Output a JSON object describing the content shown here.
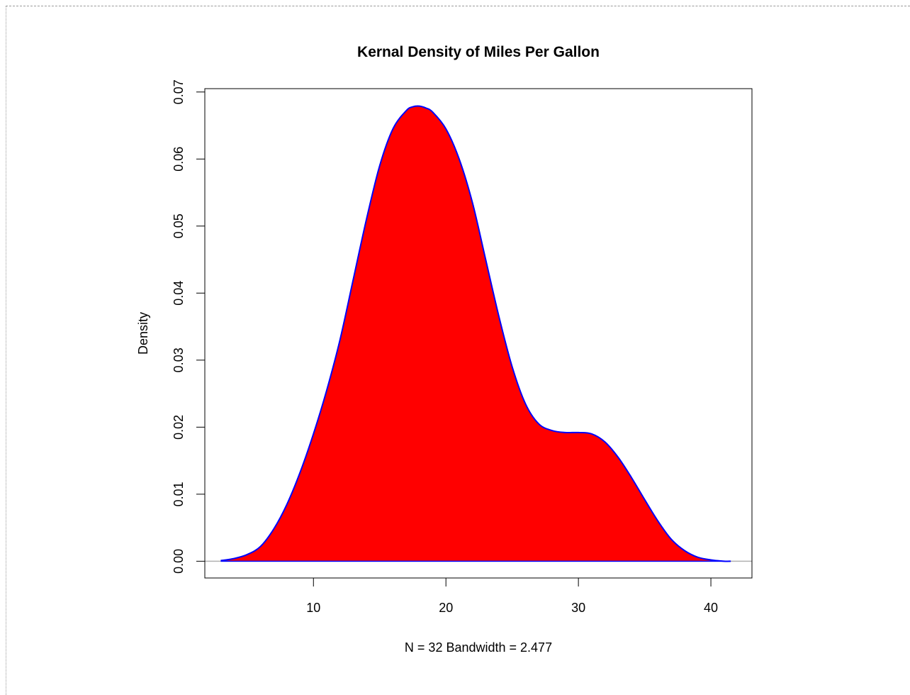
{
  "chart_data": {
    "type": "area",
    "title": "Kernal Density of Miles Per Gallon",
    "xlabel": "N = 32   Bandwidth = 2.477",
    "ylabel": "Density",
    "xlim": [
      1.8,
      43.1
    ],
    "ylim": [
      -0.0025,
      0.0705
    ],
    "xticks": [
      10,
      20,
      30,
      40
    ],
    "yticks": [
      0.0,
      0.01,
      0.02,
      0.03,
      0.04,
      0.05,
      0.06,
      0.07
    ],
    "xtick_labels": [
      "10",
      "20",
      "30",
      "40"
    ],
    "ytick_labels": [
      "0.00",
      "0.01",
      "0.02",
      "0.03",
      "0.04",
      "0.05",
      "0.06",
      "0.07"
    ],
    "fill_color": "#ff0000",
    "line_color": "#0000ff",
    "baseline_color": "#b0b0b0",
    "grid": false,
    "legend": "none",
    "series": [
      {
        "x": [
          3.0,
          4.0,
          5.0,
          6.0,
          7.0,
          8.0,
          9.0,
          10.0,
          11.0,
          12.0,
          13.0,
          14.0,
          15.0,
          16.0,
          17.0,
          17.5,
          18.0,
          18.5,
          19.0,
          20.0,
          21.0,
          22.0,
          23.0,
          24.0,
          25.0,
          26.0,
          27.0,
          28.0,
          29.0,
          30.0,
          31.0,
          32.0,
          33.0,
          34.0,
          35.0,
          36.0,
          37.0,
          38.0,
          39.0,
          40.0,
          41.0,
          41.5
        ],
        "y": [
          0.0001,
          0.0004,
          0.001,
          0.0022,
          0.0048,
          0.0085,
          0.0133,
          0.019,
          0.0255,
          0.033,
          0.042,
          0.051,
          0.059,
          0.0645,
          0.0672,
          0.0678,
          0.0679,
          0.0676,
          0.067,
          0.0645,
          0.06,
          0.0535,
          0.045,
          0.0365,
          0.029,
          0.0235,
          0.0205,
          0.0195,
          0.0192,
          0.0192,
          0.019,
          0.0178,
          0.0155,
          0.0125,
          0.0092,
          0.006,
          0.0033,
          0.0016,
          0.0006,
          0.0002,
          0.0,
          0.0
        ]
      }
    ]
  }
}
